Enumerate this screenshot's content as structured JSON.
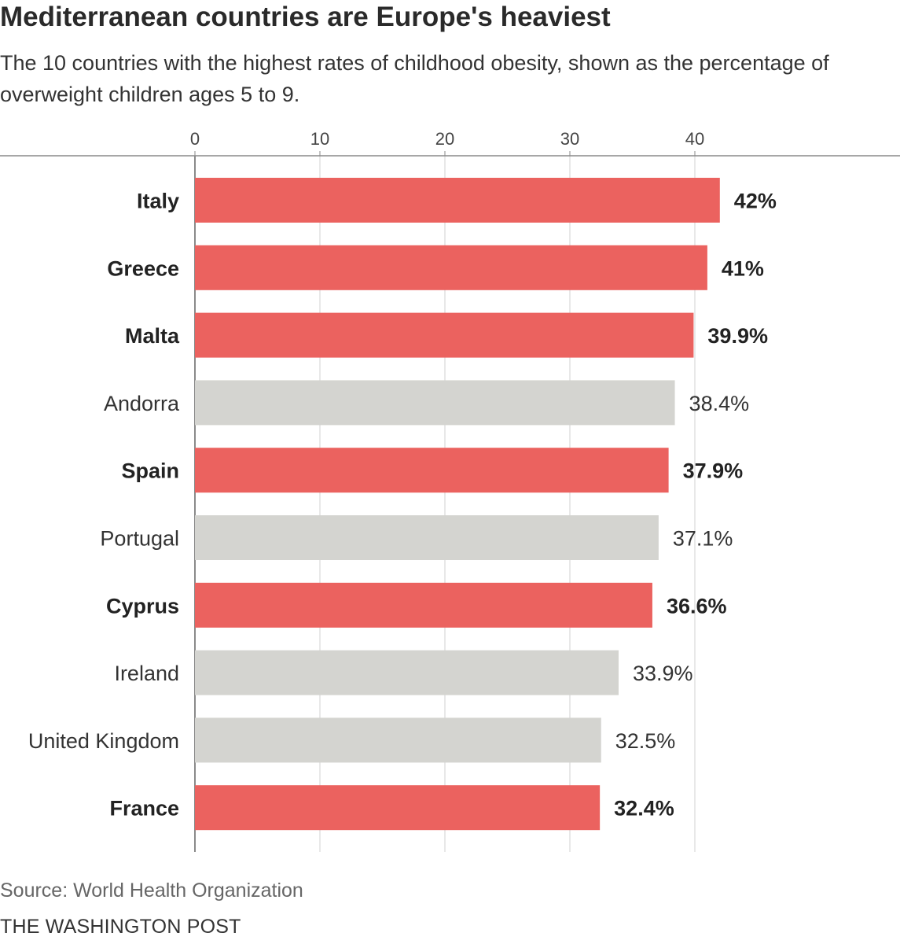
{
  "header": {
    "title": "Mediterranean countries are Europe's heaviest",
    "subtitle": "The 10 countries with the highest rates of childhood obesity, shown as the percentage of overweight children ages 5 to 9."
  },
  "footer": {
    "source": "Source: World Health Organization",
    "credit": "THE WASHINGTON POST"
  },
  "colors": {
    "highlight": "#eb625f",
    "other": "#d4d4d0",
    "grid": "#d0d0d0",
    "axis": "#8a8a8a"
  },
  "chart_data": {
    "type": "bar",
    "orientation": "horizontal",
    "xlim": [
      0,
      45
    ],
    "ticks": [
      0,
      10,
      20,
      30,
      40
    ],
    "tick_labels": [
      "0",
      "10",
      "20",
      "30",
      "40"
    ],
    "categories": [
      "Italy",
      "Greece",
      "Malta",
      "Andorra",
      "Spain",
      "Portugal",
      "Cyprus",
      "Ireland",
      "United Kingdom",
      "France"
    ],
    "values": [
      42,
      41,
      39.9,
      38.4,
      37.9,
      37.1,
      36.6,
      33.9,
      32.5,
      32.4
    ],
    "value_labels": [
      "42%",
      "41%",
      "39.9%",
      "38.4%",
      "37.9%",
      "37.1%",
      "36.6%",
      "33.9%",
      "32.5%",
      "32.4%"
    ],
    "highlighted": [
      true,
      true,
      true,
      false,
      true,
      false,
      true,
      false,
      false,
      true
    ],
    "axis_position": "top",
    "grid": true,
    "legend": "none"
  }
}
